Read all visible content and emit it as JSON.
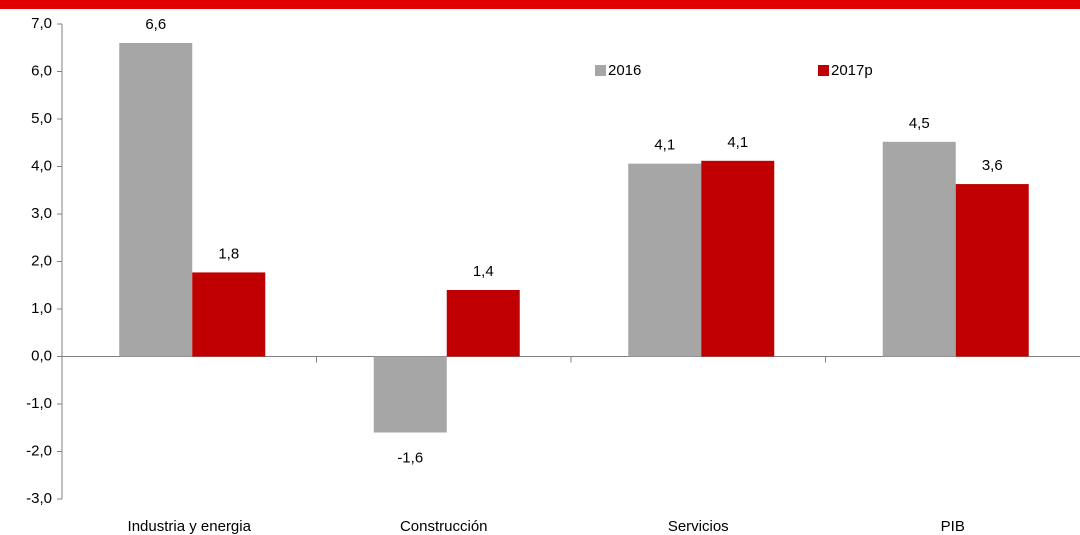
{
  "chart_data": {
    "type": "bar",
    "categories": [
      "Industria y energia",
      "Construcción",
      "Servicios",
      "PIB"
    ],
    "series": [
      {
        "name": "2016",
        "color": "#a6a6a6",
        "values": [
          6.6,
          -1.6,
          4.06,
          4.52
        ],
        "value_labels": [
          "6,6",
          "-1,6",
          "4,1",
          "4,5"
        ]
      },
      {
        "name": "2017p",
        "color": "#c00000",
        "values": [
          1.77,
          1.4,
          4.12,
          3.63
        ],
        "value_labels": [
          "1,8",
          "1,4",
          "4,1",
          "3,6"
        ]
      }
    ],
    "ylim": [
      -3,
      7
    ],
    "yticks": [
      {
        "value": -3,
        "label": "-3,0"
      },
      {
        "value": -2,
        "label": "-2,0"
      },
      {
        "value": -1,
        "label": "-1,0"
      },
      {
        "value": 0,
        "label": "0,0"
      },
      {
        "value": 1,
        "label": "1,0"
      },
      {
        "value": 2,
        "label": "2,0"
      },
      {
        "value": 3,
        "label": "3,0"
      },
      {
        "value": 4,
        "label": "4,0"
      },
      {
        "value": 5,
        "label": "5,0"
      },
      {
        "value": 6,
        "label": "6,0"
      },
      {
        "value": 7,
        "label": "7,0"
      }
    ],
    "grid": false
  }
}
